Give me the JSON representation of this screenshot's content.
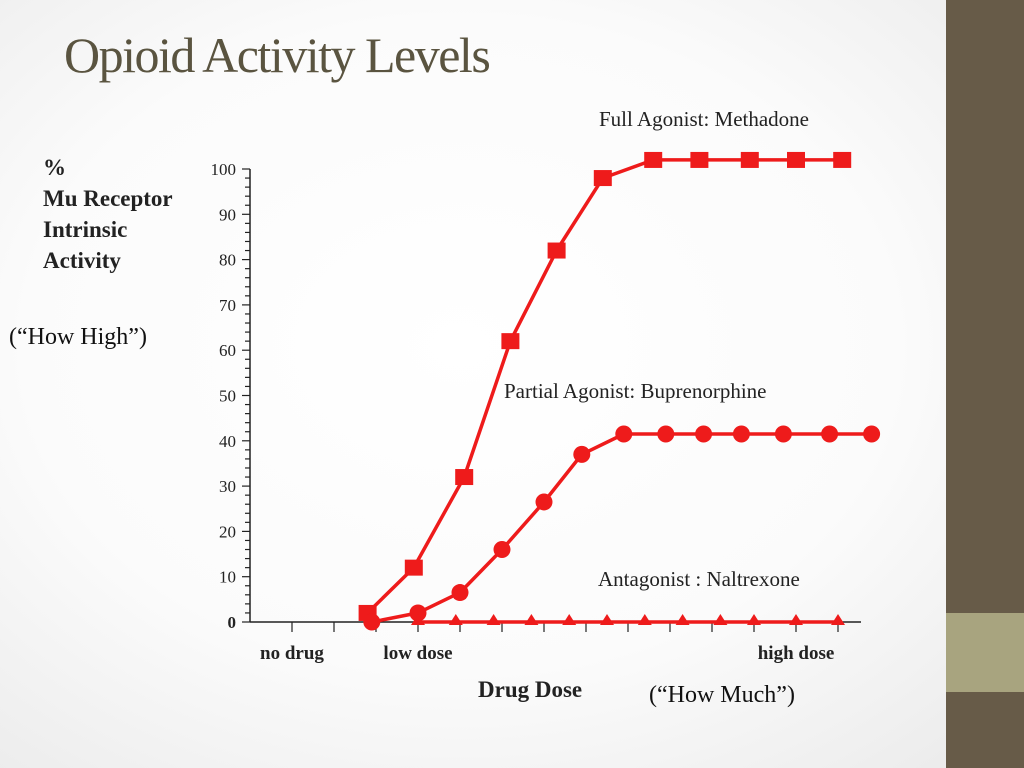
{
  "title": "Opioid Activity Levels",
  "annotations": {
    "how_high": "(“How High”)",
    "how_much": "(“How Much”)"
  },
  "colors": {
    "series": "#ee1b1b",
    "title": "#5a5440",
    "sidebar": "#675b48",
    "sidebar_accent": "#a8a47f"
  },
  "chart_data": {
    "type": "line",
    "title": "",
    "ylabel": "%\nMu Receptor\nIntrinsic\nActivity",
    "xlabel": "Drug Dose",
    "ylim": [
      0,
      100
    ],
    "yticks": [
      {
        "value": 100,
        "label": "100"
      },
      {
        "value": 90,
        "label": "90"
      },
      {
        "value": 80,
        "label": "80"
      },
      {
        "value": 70,
        "label": "70"
      },
      {
        "value": 60,
        "label": "60"
      },
      {
        "value": 50,
        "label": "50"
      },
      {
        "value": 40,
        "label": "40"
      },
      {
        "value": 30,
        "label": "30"
      },
      {
        "value": 20,
        "label": "20"
      },
      {
        "value": 10,
        "label": "10"
      },
      {
        "value": 0,
        "label": "0"
      }
    ],
    "xlim": [
      0,
      14.5
    ],
    "xtick_labels": [
      {
        "x": 1,
        "label": "no drug"
      },
      {
        "x": 4,
        "label": "low dose"
      },
      {
        "x": 13,
        "label": "high dose"
      }
    ],
    "grid": false,
    "series": [
      {
        "name": "Full Agonist: Methadone",
        "marker": "square",
        "x": [
          2.8,
          3.9,
          5.1,
          6.2,
          7.3,
          8.4,
          9.6,
          10.7,
          11.9,
          13.0,
          14.1
        ],
        "y": [
          2,
          12,
          32,
          62,
          82,
          98,
          102,
          102,
          102,
          102,
          102
        ]
      },
      {
        "name": "Partial Agonist: Buprenorphine",
        "marker": "circle",
        "x": [
          2.9,
          4.0,
          5.0,
          6.0,
          7.0,
          7.9,
          8.9,
          9.9,
          10.8,
          11.7,
          12.7,
          13.8,
          14.8
        ],
        "y": [
          0,
          2,
          6.5,
          16,
          26.5,
          37,
          41.5,
          41.5,
          41.5,
          41.5,
          41.5,
          41.5,
          41.5
        ]
      },
      {
        "name": "Antagonist : Naltrexone",
        "marker": "triangle",
        "x": [
          4.0,
          4.9,
          5.8,
          6.7,
          7.6,
          8.5,
          9.4,
          10.3,
          11.2,
          12.0,
          13.0,
          14.0
        ],
        "y": [
          0,
          0,
          0,
          0,
          0,
          0,
          0,
          0,
          0,
          0,
          0,
          0
        ]
      }
    ]
  }
}
